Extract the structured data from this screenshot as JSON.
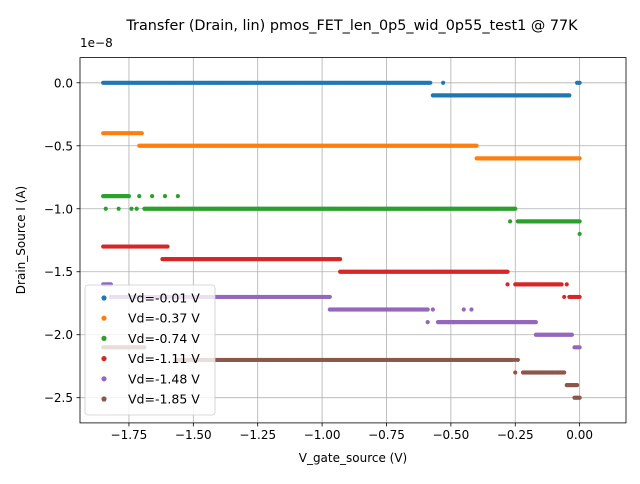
{
  "chart_data": {
    "type": "scatter",
    "title": "Transfer (Drain, lin) pmos_FET_len_0p5_wid_0p55_test1 @ 77K",
    "xlabel": "V_gate_source (V)",
    "ylabel": "Drain_Source I (A)",
    "y_multiplier": "1e−8",
    "xlim": [
      -1.94,
      0.18
    ],
    "ylim": [
      -2.7,
      0.2
    ],
    "grid": true,
    "legend_position": "lower-left",
    "x_ticks": [
      -1.75,
      -1.5,
      -1.25,
      -1.0,
      -0.75,
      -0.5,
      -0.25,
      0.0
    ],
    "x_tick_labels": [
      "−1.75",
      "−1.50",
      "−1.25",
      "−1.00",
      "−0.75",
      "−0.50",
      "−0.25",
      "0.00"
    ],
    "y_ticks": [
      0.0,
      -0.5,
      -1.0,
      -1.5,
      -2.0,
      -2.5
    ],
    "y_tick_labels": [
      "0.0",
      "−0.5",
      "−1.0",
      "−1.5",
      "−2.0",
      "−2.5"
    ],
    "x_step": 0.005,
    "series": [
      {
        "name": "Vd=-0.01 V",
        "color": "#1f77b4",
        "segments": [
          {
            "x0": -1.85,
            "x1": -0.58,
            "y": 0.0
          },
          {
            "x0": -0.57,
            "x1": -0.04,
            "y": -0.1
          },
          {
            "x0": -0.01,
            "x1": 0.0,
            "y": 0.0
          }
        ],
        "points": [
          [
            -0.53,
            0.0
          ]
        ]
      },
      {
        "name": "Vd=-0.37 V",
        "color": "#ff7f0e",
        "segments": [
          {
            "x0": -1.85,
            "x1": -1.7,
            "y": -0.4
          },
          {
            "x0": -1.71,
            "x1": -0.4,
            "y": -0.5
          },
          {
            "x0": -0.4,
            "x1": 0.0,
            "y": -0.6
          }
        ],
        "points": []
      },
      {
        "name": "Vd=-0.74 V",
        "color": "#2ca02c",
        "segments": [
          {
            "x0": -1.85,
            "x1": -1.75,
            "y": -0.9
          },
          {
            "x0": -1.69,
            "x1": -0.25,
            "y": -1.0
          },
          {
            "x0": -0.24,
            "x1": 0.0,
            "y": -1.1
          }
        ],
        "points": [
          [
            -1.84,
            -1.0
          ],
          [
            -1.79,
            -1.0
          ],
          [
            -1.74,
            -1.0
          ],
          [
            -1.72,
            -1.0
          ],
          [
            -1.71,
            -0.9
          ],
          [
            -1.66,
            -0.9
          ],
          [
            -1.61,
            -0.9
          ],
          [
            -1.56,
            -0.9
          ],
          [
            -0.27,
            -1.1
          ],
          [
            0.0,
            -1.2
          ]
        ]
      },
      {
        "name": "Vd=-1.11 V",
        "color": "#d62728",
        "segments": [
          {
            "x0": -1.85,
            "x1": -1.6,
            "y": -1.3
          },
          {
            "x0": -1.62,
            "x1": -0.93,
            "y": -1.4
          },
          {
            "x0": -0.93,
            "x1": -0.28,
            "y": -1.5
          },
          {
            "x0": -0.25,
            "x1": -0.07,
            "y": -1.6
          },
          {
            "x0": -0.04,
            "x1": 0.0,
            "y": -1.7
          }
        ],
        "points": [
          [
            -0.28,
            -1.6
          ],
          [
            -0.06,
            -1.7
          ],
          [
            -0.05,
            -1.6
          ]
        ]
      },
      {
        "name": "Vd=-1.48 V",
        "color": "#9467bd",
        "segments": [
          {
            "x0": -1.85,
            "x1": -1.82,
            "y": -1.6
          },
          {
            "x0": -1.82,
            "x1": -0.97,
            "y": -1.7
          },
          {
            "x0": -0.97,
            "x1": -0.59,
            "y": -1.8
          },
          {
            "x0": -0.55,
            "x1": -0.17,
            "y": -1.9
          },
          {
            "x0": -0.17,
            "x1": -0.03,
            "y": -2.0
          },
          {
            "x0": -0.02,
            "x1": 0.0,
            "y": -2.1
          }
        ],
        "points": [
          [
            -0.57,
            -1.8
          ],
          [
            -0.45,
            -1.8
          ],
          [
            -0.42,
            -1.8
          ],
          [
            -0.59,
            -1.9
          ],
          [
            -0.51,
            -1.9
          ],
          [
            -0.49,
            -1.9
          ]
        ]
      },
      {
        "name": "Vd=-1.85 V",
        "color": "#8c564b",
        "segments": [
          {
            "x0": -1.85,
            "x1": -1.69,
            "y": -2.1
          },
          {
            "x0": -1.57,
            "x1": -0.26,
            "y": -2.2
          },
          {
            "x0": -0.22,
            "x1": -0.06,
            "y": -2.3
          },
          {
            "x0": -0.05,
            "x1": -0.01,
            "y": -2.4
          },
          {
            "x0": -0.02,
            "x1": 0.0,
            "y": -2.5
          }
        ],
        "points": [
          [
            -0.25,
            -2.2
          ],
          [
            -0.24,
            -2.2
          ],
          [
            -0.25,
            -2.3
          ]
        ]
      }
    ]
  }
}
